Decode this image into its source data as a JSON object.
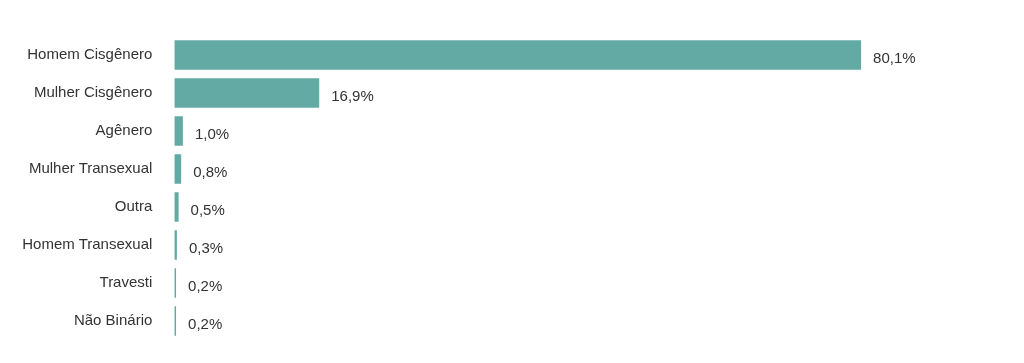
{
  "chart_data": {
    "type": "bar",
    "orientation": "horizontal",
    "categories": [
      "Homem Cisgênero",
      "Mulher Cisgênero",
      "Agênero",
      "Mulher Transexual",
      "Outra",
      "Homem Transexual",
      "Travesti",
      "Não Binário"
    ],
    "values": [
      80.1,
      16.9,
      1.0,
      0.8,
      0.5,
      0.3,
      0.2,
      0.2
    ],
    "value_labels": [
      "80,1%",
      "16,9%",
      "1,0%",
      "0,8%",
      "0,5%",
      "0,3%",
      "0,2%",
      "0,2%"
    ],
    "color": "#64aaa4",
    "tick_labels": "y"
  }
}
